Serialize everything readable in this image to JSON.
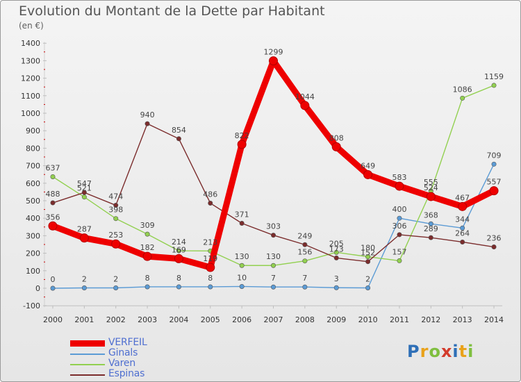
{
  "title": "Evolution du Montant de la Dette par Habitant",
  "subtitle": "(en €)",
  "logo": "Proxiti",
  "chart_data": {
    "type": "line",
    "title": "Evolution du Montant de la Dette par Habitant",
    "subtitle": "(en €)",
    "categories": [
      "2000",
      "2001",
      "2002",
      "2003",
      "2004",
      "2005",
      "2006",
      "2007",
      "2008",
      "2009",
      "2010",
      "2011",
      "2012",
      "2013",
      "2014"
    ],
    "ylim": [
      -100,
      1400
    ],
    "yticks": [
      -100,
      0,
      100,
      200,
      300,
      400,
      500,
      600,
      700,
      800,
      900,
      1000,
      1100,
      1200,
      1300,
      1400
    ],
    "grid": false,
    "legend_position": "bottom-left",
    "series": [
      {
        "name": "VERFEIL",
        "color": "#ee0000",
        "emphasis": true,
        "values": [
          356,
          287,
          253,
          182,
          169,
          119,
          822,
          1299,
          1044,
          808,
          649,
          583,
          524,
          467,
          557
        ]
      },
      {
        "name": "Ginals",
        "color": "#5b9bd5",
        "values": [
          0,
          2,
          2,
          8,
          8,
          8,
          10,
          7,
          7,
          3,
          2,
          400,
          368,
          344,
          709
        ]
      },
      {
        "name": "Varen",
        "color": "#92d050",
        "values": [
          637,
          521,
          398,
          309,
          214,
          213,
          130,
          130,
          156,
          205,
          180,
          157,
          555,
          1086,
          1159
        ]
      },
      {
        "name": "Espinas",
        "color": "#7b2c2c",
        "values": [
          488,
          547,
          474,
          940,
          854,
          486,
          371,
          303,
          249,
          173,
          152,
          306,
          289,
          264,
          236
        ]
      }
    ]
  }
}
